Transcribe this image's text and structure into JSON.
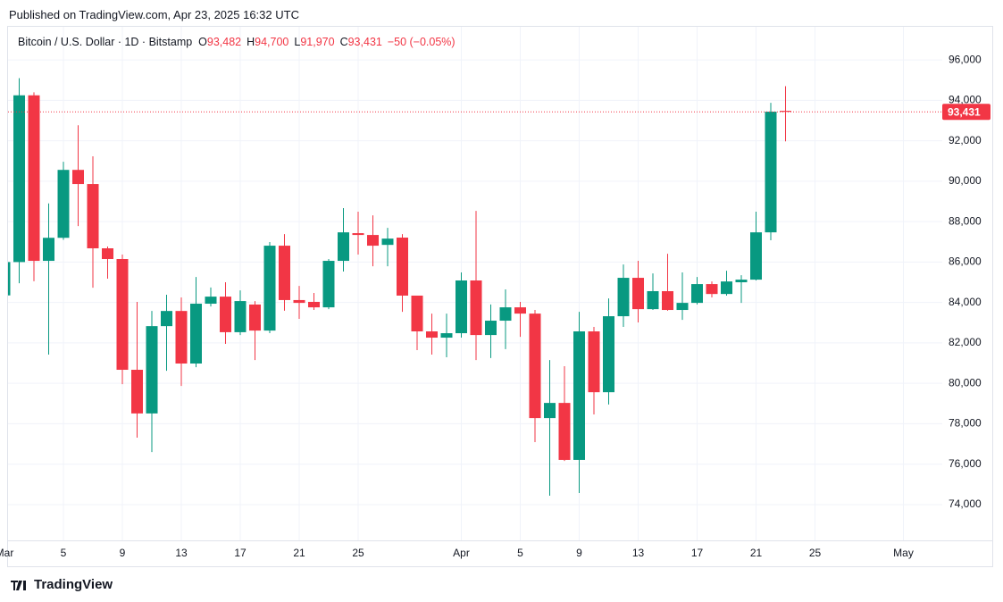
{
  "published": "Published on TradingView.com, Apr 23, 2025 16:32 UTC",
  "brand": "TradingView",
  "chart_data": {
    "type": "candlestick",
    "title": "Bitcoin / U.S. Dollar · 1D · Bitstamp",
    "ohlc_header": [
      {
        "label": "O",
        "value": "93,482"
      },
      {
        "label": "H",
        "value": "94,700"
      },
      {
        "label": "L",
        "value": "91,970"
      },
      {
        "label": "C",
        "value": "93,431"
      }
    ],
    "change": "−50 (−0.05%)",
    "up_color": "#089981",
    "down_color": "#f23645",
    "grid": true,
    "categories": [
      "Mar",
      null,
      null,
      null,
      "5",
      null,
      null,
      null,
      "9",
      null,
      null,
      null,
      "13",
      null,
      null,
      null,
      "17",
      null,
      null,
      null,
      "21",
      null,
      null,
      null,
      "25",
      null,
      null,
      null,
      null,
      null,
      null,
      "Apr",
      null,
      null,
      null,
      "5",
      null,
      null,
      null,
      "9",
      null,
      null,
      null,
      "13",
      null,
      null,
      null,
      "17",
      null,
      null,
      null,
      "21",
      null,
      null,
      null,
      "25",
      null,
      null,
      null,
      null,
      null,
      "May",
      null,
      null
    ],
    "open": [
      84350,
      86000,
      94250,
      86060,
      87200,
      90560,
      89860,
      86680,
      86150,
      80670,
      78510,
      82830,
      83580,
      80980,
      83940,
      84290,
      82530,
      83900,
      82610,
      86810,
      84120,
      84030,
      83760,
      86060,
      87430,
      87340,
      86850,
      87210,
      84340,
      82570,
      82260,
      82480,
      85090,
      82390,
      83100,
      83760,
      83450,
      78280,
      79030,
      76210,
      82570,
      79560,
      83320,
      85220,
      83670,
      84560,
      83630,
      83980,
      84910,
      84420,
      85000,
      85130,
      87470,
      93482,
      null,
      null,
      null,
      null,
      null,
      null,
      null,
      null,
      null,
      null
    ],
    "high": [
      86500,
      95100,
      94400,
      88900,
      90960,
      92770,
      91230,
      86770,
      86370,
      84030,
      83580,
      84380,
      84250,
      85260,
      84740,
      85000,
      84600,
      84070,
      86990,
      87380,
      84820,
      84470,
      86150,
      88670,
      88490,
      88310,
      87690,
      87380,
      84340,
      83450,
      83450,
      85490,
      88530,
      83900,
      84650,
      84030,
      83630,
      81150,
      80850,
      83540,
      82790,
      84200,
      85880,
      86060,
      85440,
      86410,
      85490,
      85260,
      85040,
      85570,
      85350,
      88490,
      93880,
      94700,
      null,
      null,
      null,
      null,
      null,
      null,
      null,
      null,
      null,
      null
    ],
    "low": [
      83800,
      84950,
      85050,
      81420,
      87100,
      87780,
      84730,
      85180,
      79960,
      77310,
      76600,
      80620,
      79870,
      80800,
      83800,
      81950,
      82390,
      81150,
      82480,
      83590,
      83190,
      83630,
      83670,
      85530,
      86370,
      85790,
      85790,
      83540,
      81640,
      81420,
      81290,
      82260,
      81150,
      81250,
      81690,
      82300,
      77090,
      74440,
      76160,
      74570,
      78460,
      78950,
      82790,
      83010,
      83630,
      83590,
      83140,
      83900,
      84250,
      84340,
      83980,
      85090,
      87080,
      91970,
      null,
      null,
      null,
      null,
      null,
      null,
      null,
      null,
      null,
      null
    ],
    "close": [
      86000,
      94250,
      86060,
      87200,
      90560,
      89860,
      86680,
      86150,
      80670,
      78510,
      82830,
      83580,
      80980,
      83940,
      84290,
      82530,
      84070,
      82610,
      86810,
      84120,
      83980,
      83760,
      86060,
      87470,
      87340,
      86810,
      87160,
      84340,
      82570,
      82260,
      82480,
      85090,
      82390,
      83100,
      83760,
      83450,
      78280,
      79030,
      76210,
      82570,
      79560,
      83320,
      85220,
      83670,
      84560,
      83630,
      83980,
      84910,
      84420,
      85040,
      85130,
      87470,
      93440,
      93431,
      null,
      null,
      null,
      null,
      null,
      null,
      null,
      null,
      null,
      null
    ],
    "ylim": [
      72230,
      97640
    ],
    "yticks": [
      {
        "value": 74000,
        "label": "74,000"
      },
      {
        "value": 76000,
        "label": "76,000"
      },
      {
        "value": 78000,
        "label": "78,000"
      },
      {
        "value": 80000,
        "label": "80,000"
      },
      {
        "value": 82000,
        "label": "82,000"
      },
      {
        "value": 84000,
        "label": "84,000"
      },
      {
        "value": 86000,
        "label": "86,000"
      },
      {
        "value": 88000,
        "label": "88,000"
      },
      {
        "value": 90000,
        "label": "90,000"
      },
      {
        "value": 92000,
        "label": "92,000"
      },
      {
        "value": 94000,
        "label": "94,000"
      },
      {
        "value": 96000,
        "label": "96,000"
      }
    ],
    "last_price": {
      "value": 93431,
      "label": "93,431"
    }
  }
}
